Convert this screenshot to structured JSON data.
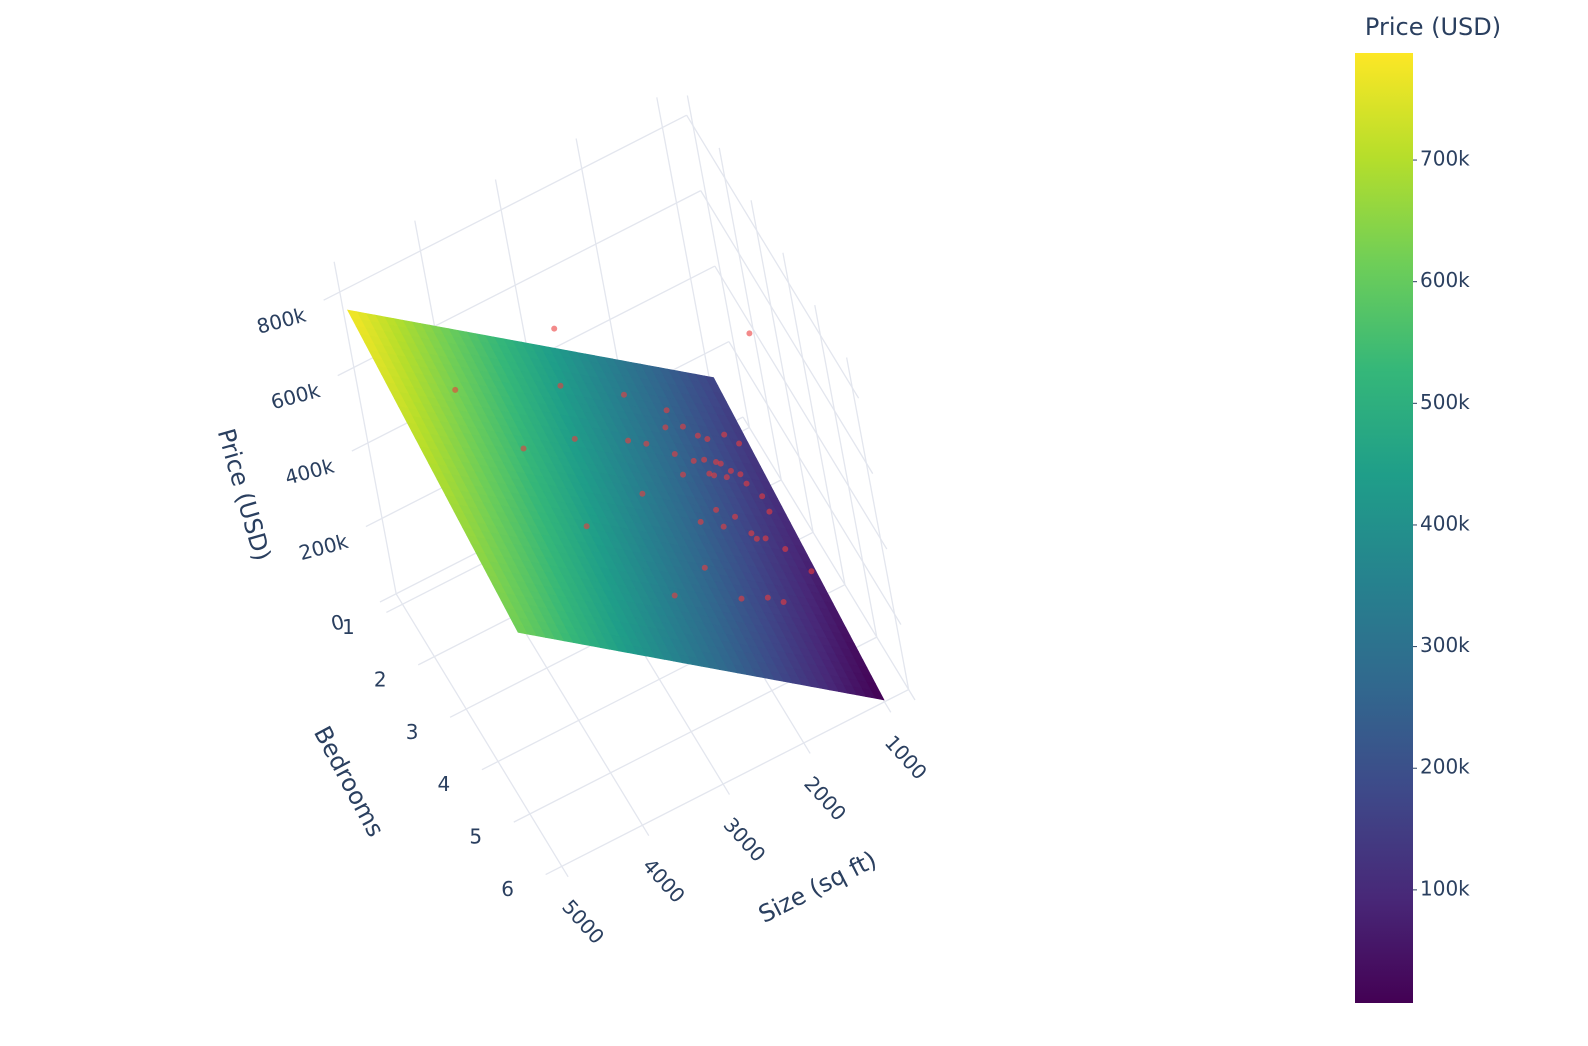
{
  "chart_data": {
    "type": "surface3d",
    "x_title": "Size (sq ft)",
    "y_title": "Bedrooms",
    "z_title": "Price (USD)",
    "xlim": [
      5200,
      700
    ],
    "ylim": [
      0.8,
      6.2
    ],
    "zlim": [
      0,
      880000
    ],
    "xticks": [
      1000,
      2000,
      3000,
      4000,
      5000
    ],
    "yticks": [
      1,
      2,
      3,
      4,
      5,
      6
    ],
    "zticks": [
      0,
      {
        "value": 200000,
        "label": "200k"
      },
      {
        "value": 400000,
        "label": "400k"
      },
      {
        "value": 600000,
        "label": "600k"
      },
      {
        "value": 800000,
        "label": "800k"
      }
    ],
    "grid": true,
    "surface": {
      "x": [
        1000,
        5000
      ],
      "y": [
        1,
        6
      ],
      "z": [
        [
          165000,
          5000
        ],
        [
          780000,
          620000
        ]
      ]
    },
    "colorscale": [
      "#440154",
      "#482878",
      "#3e4989",
      "#31688e",
      "#26828e",
      "#1f9e89",
      "#35b779",
      "#6ece58",
      "#b5de2b",
      "#fde725"
    ],
    "colorbar": {
      "title": "Price (USD)",
      "lim": [
        7000,
        788000
      ],
      "ticks": [
        {
          "value": 100000,
          "label": "100k"
        },
        {
          "value": 200000,
          "label": "200k"
        },
        {
          "value": 300000,
          "label": "300k"
        },
        {
          "value": 400000,
          "label": "400k"
        },
        {
          "value": 500000,
          "label": "500k"
        },
        {
          "value": 600000,
          "label": "600k"
        },
        {
          "value": 700000,
          "label": "700k"
        }
      ]
    },
    "scatter": {
      "color": "rgba(235,60,60,0.6)",
      "x": [
        1500,
        1600,
        1700,
        1400,
        1800,
        1650,
        1550,
        1900,
        2000,
        1450,
        1350,
        1750,
        1850,
        2100,
        1250,
        1950,
        1600,
        1700,
        2200,
        1500,
        2400,
        2600,
        2300,
        1300,
        1200,
        2800,
        3200,
        3000,
        1100,
        2500,
        1000,
        2700,
        3500,
        2900,
        1650,
        1780,
        1560,
        1900,
        2050,
        1400,
        1680,
        2150,
        1850,
        3800,
        4200,
        1300
      ],
      "y": [
        3,
        3,
        3,
        3,
        4,
        4,
        2,
        3,
        4,
        2,
        3,
        3,
        2,
        3,
        2,
        4,
        4,
        2,
        4,
        4,
        3,
        3,
        2,
        4,
        3,
        4,
        3,
        2,
        2,
        5,
        3,
        1,
        4,
        5,
        3,
        3,
        3,
        2,
        3,
        4,
        5,
        5,
        5,
        3,
        2,
        5
      ],
      "z": [
        250000,
        280000,
        260000,
        230000,
        300000,
        240000,
        210000,
        320000,
        340000,
        190000,
        200000,
        270000,
        310000,
        360000,
        180000,
        290000,
        220000,
        250000,
        330000,
        210000,
        420000,
        450000,
        400000,
        160000,
        150000,
        470000,
        520000,
        500000,
        140000,
        380000,
        560000,
        480000,
        460000,
        350000,
        290000,
        310000,
        240000,
        270000,
        300000,
        270000,
        200000,
        260000,
        230000,
        560000,
        620000,
        240000
      ]
    }
  }
}
